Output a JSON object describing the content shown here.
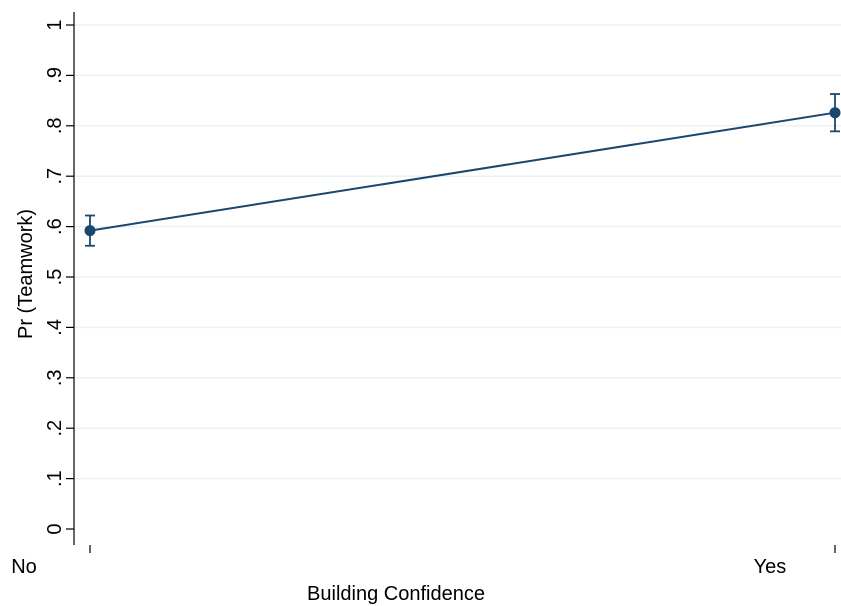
{
  "chart_data": {
    "type": "line",
    "title": "",
    "xlabel": "Building Confidence",
    "ylabel": "Pr (Teamwork)",
    "categories": [
      "No",
      "Yes"
    ],
    "series": [
      {
        "values": [
          0.592,
          0.826
        ],
        "ci_low": [
          0.562,
          0.789
        ],
        "ci_high": [
          0.622,
          0.863
        ]
      }
    ],
    "y_ticks": [
      0,
      0.1,
      0.2,
      0.3,
      0.4,
      0.5,
      0.6,
      0.7,
      0.8,
      0.9,
      1
    ],
    "y_tick_labels": [
      "0",
      ".1",
      ".2",
      ".3",
      ".4",
      ".5",
      ".6",
      ".7",
      ".8",
      ".9",
      "1"
    ],
    "ylim": [
      0,
      1
    ],
    "grid": true,
    "legend": "none",
    "colors": {
      "series": "#1a476f",
      "grid": "#eaf2f3",
      "axis": "#000000"
    }
  }
}
